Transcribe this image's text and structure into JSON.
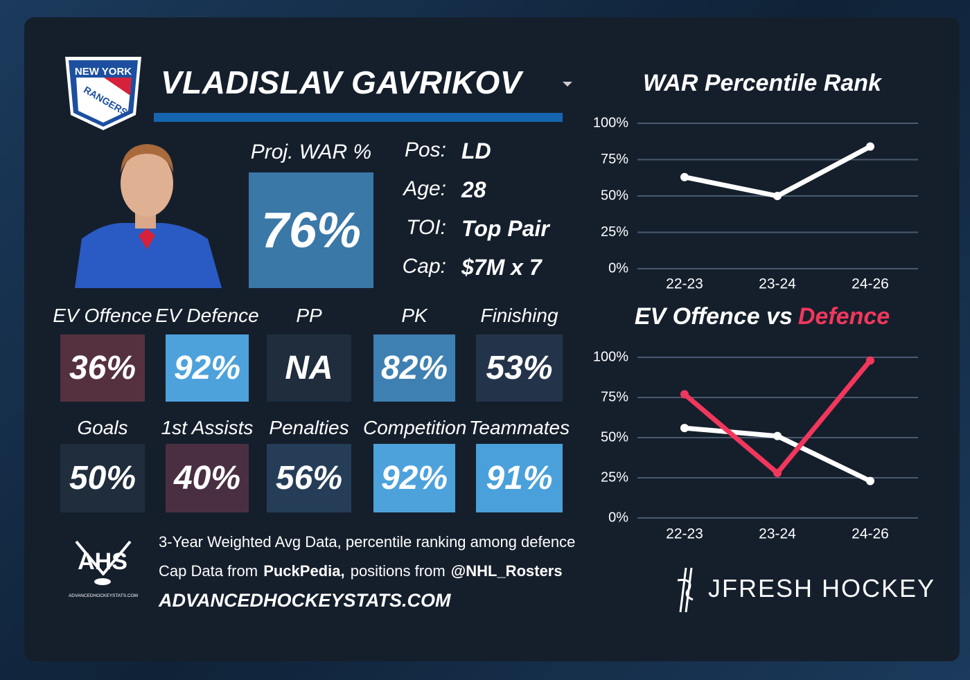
{
  "logo": {
    "top": "NEW YORK",
    "bottom": "RANGERS"
  },
  "player": {
    "name": "VLADISLAV GAVRIKOV"
  },
  "proj_war": {
    "label": "Proj. WAR %",
    "value": "76%",
    "color": "#3a78a8"
  },
  "info": [
    [
      "Pos:",
      "LD"
    ],
    [
      "Age:",
      "28"
    ],
    [
      "TOI:",
      "Top Pair"
    ],
    [
      "Cap:",
      "$7M x 7"
    ]
  ],
  "tiles": [
    {
      "label": "EV Offence",
      "value": "36%",
      "color": "#55313f"
    },
    {
      "label": "EV Defence",
      "value": "92%",
      "color": "#4da2dc"
    },
    {
      "label": "PP",
      "value": "NA",
      "color": "#1f2d3d"
    },
    {
      "label": "PK",
      "value": "82%",
      "color": "#3f80b2"
    },
    {
      "label": "Finishing",
      "value": "53%",
      "color": "#23344a"
    },
    {
      "label": "Goals",
      "value": "50%",
      "color": "#1f2d3d"
    },
    {
      "label": "1st Assists",
      "value": "40%",
      "color": "#4a2f42"
    },
    {
      "label": "Penalties",
      "value": "56%",
      "color": "#253d57"
    },
    {
      "label": "Competition",
      "value": "92%",
      "color": "#4da2dc"
    },
    {
      "label": "Teammates",
      "value": "91%",
      "color": "#4aa0da"
    }
  ],
  "footer": {
    "line1": "3-Year Weighted Avg Data, percentile ranking among defence",
    "line2": [
      "Cap Data from",
      "PuckPedia,",
      "positions from",
      "@NHL_Rosters"
    ],
    "line3": "ADVANCEDHOCKEYSTATS.COM",
    "ahs_logo": "AHS",
    "ahs_url": "ADVANCEDHOCKEYSTATS.COM",
    "brand": "JFRESH HOCKEY"
  },
  "chart_data": [
    {
      "type": "line",
      "title": "WAR Percentile Rank",
      "categories": [
        "22-23",
        "23-24",
        "24-26"
      ],
      "series": [
        {
          "color": "#ffffff",
          "values": [
            63,
            50,
            84
          ]
        }
      ],
      "ylim": [
        0,
        100
      ],
      "yticks": [
        {
          "value": 0,
          "label": "0%"
        },
        {
          "value": 25,
          "label": "25%"
        },
        {
          "value": 50,
          "label": "50%"
        },
        {
          "value": 75,
          "label": "75%"
        },
        {
          "value": 100,
          "label": "100%"
        }
      ],
      "grid": true
    },
    {
      "type": "line",
      "title": [
        "EV Offence vs",
        "Defence"
      ],
      "categories": [
        "22-23",
        "23-24",
        "24-26"
      ],
      "series": [
        {
          "color": "#ffffff",
          "values": [
            56,
            51,
            23
          ]
        },
        {
          "color": "#f2375c",
          "values": [
            77,
            28,
            98
          ]
        }
      ],
      "ylim": [
        0,
        100
      ],
      "yticks": [
        {
          "value": 0,
          "label": "0%"
        },
        {
          "value": 25,
          "label": "25%"
        },
        {
          "value": 50,
          "label": "50%"
        },
        {
          "value": 75,
          "label": "75%"
        },
        {
          "value": 100,
          "label": "100%"
        }
      ],
      "grid": true
    }
  ]
}
